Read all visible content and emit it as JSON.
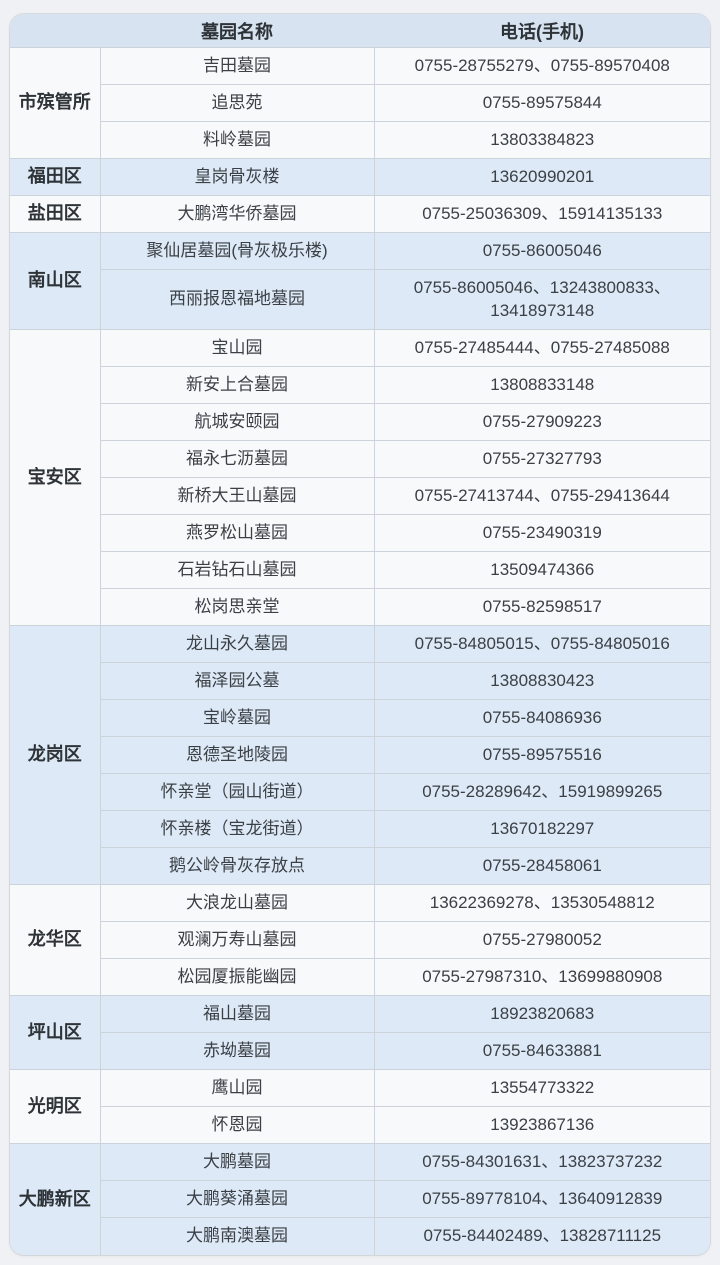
{
  "page": {
    "background_color": "#f0f1f4",
    "colors": {
      "header_bg": "#d7e3f0",
      "band_blue": "#dde9f6",
      "band_white": "#f8f9fa",
      "border": "#ccd3da",
      "text": "#3b4046"
    }
  },
  "table": {
    "header": {
      "name_col": "墓园名称",
      "phone_col": "电话(手机)"
    },
    "groups": [
      {
        "district": "市殡管所",
        "rows": [
          {
            "name": "吉田墓园",
            "phone": "0755-28755279、0755-89570408"
          },
          {
            "name": "追思苑",
            "phone": "0755-89575844"
          },
          {
            "name": "料岭墓园",
            "phone": "13803384823"
          }
        ]
      },
      {
        "district": "福田区",
        "rows": [
          {
            "name": "皇岗骨灰楼",
            "phone": "13620990201"
          }
        ]
      },
      {
        "district": "盐田区",
        "rows": [
          {
            "name": "大鹏湾华侨墓园",
            "phone": "0755-25036309、15914135133"
          }
        ]
      },
      {
        "district": "南山区",
        "rows": [
          {
            "name": "聚仙居墓园(骨灰极乐楼)",
            "phone": "0755-86005046"
          },
          {
            "name": "西丽报恩福地墓园",
            "phone": "0755-86005046、13243800833、13418973148"
          }
        ]
      },
      {
        "district": "宝安区",
        "rows": [
          {
            "name": "宝山园",
            "phone": "0755-27485444、0755-27485088"
          },
          {
            "name": "新安上合墓园",
            "phone": "13808833148"
          },
          {
            "name": "航城安颐园",
            "phone": "0755-27909223"
          },
          {
            "name": "福永七沥墓园",
            "phone": "0755-27327793"
          },
          {
            "name": "新桥大王山墓园",
            "phone": "0755-27413744、0755-29413644"
          },
          {
            "name": "燕罗松山墓园",
            "phone": "0755-23490319"
          },
          {
            "name": "石岩钻石山墓园",
            "phone": "13509474366"
          },
          {
            "name": "松岗思亲堂",
            "phone": "0755-82598517"
          }
        ]
      },
      {
        "district": "龙岗区",
        "rows": [
          {
            "name": "龙山永久墓园",
            "phone": "0755-84805015、0755-84805016"
          },
          {
            "name": "福泽园公墓",
            "phone": "13808830423"
          },
          {
            "name": "宝岭墓园",
            "phone": "0755-84086936"
          },
          {
            "name": "恩德圣地陵园",
            "phone": "0755-89575516"
          },
          {
            "name": "怀亲堂（园山街道）",
            "phone": "0755-28289642、15919899265"
          },
          {
            "name": "怀亲楼（宝龙街道）",
            "phone": "13670182297"
          },
          {
            "name": "鹅公岭骨灰存放点",
            "phone": "0755-28458061"
          }
        ]
      },
      {
        "district": "龙华区",
        "rows": [
          {
            "name": "大浪龙山墓园",
            "phone": "13622369278、13530548812"
          },
          {
            "name": "观澜万寿山墓园",
            "phone": "0755-27980052"
          },
          {
            "name": "松园厦振能幽园",
            "phone": "0755-27987310、13699880908"
          }
        ]
      },
      {
        "district": "坪山区",
        "rows": [
          {
            "name": "福山墓园",
            "phone": "18923820683"
          },
          {
            "name": "赤坳墓园",
            "phone": "0755-84633881"
          }
        ]
      },
      {
        "district": "光明区",
        "rows": [
          {
            "name": "鹰山园",
            "phone": "13554773322"
          },
          {
            "name": "怀恩园",
            "phone": "13923867136"
          }
        ]
      },
      {
        "district": "大鹏新区",
        "rows": [
          {
            "name": "大鹏墓园",
            "phone": "0755-84301631、13823737232"
          },
          {
            "name": "大鹏葵涌墓园",
            "phone": "0755-89778104、13640912839"
          },
          {
            "name": "大鹏南澳墓园",
            "phone": "0755-84402489、13828711125"
          }
        ]
      }
    ]
  }
}
